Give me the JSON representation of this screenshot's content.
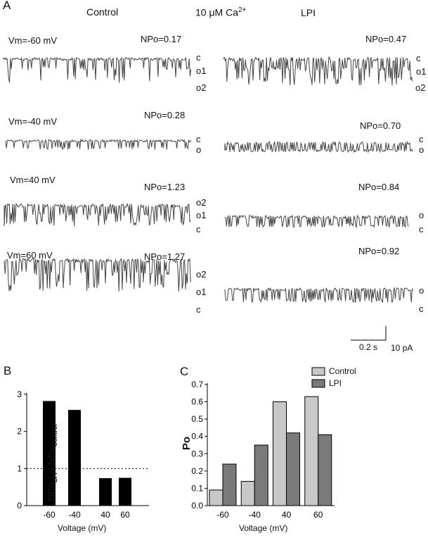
{
  "panelA": {
    "letter": "A",
    "control_title": "Control",
    "condition_prefix": "10 μM Ca",
    "condition_sup": "2+",
    "lpi_title": "LPI",
    "rows": [
      {
        "vm": "Vm=-60 mV",
        "control_npo": "NPo=0.17",
        "lpi_npo": "NPo=0.47",
        "control_states": [
          "c",
          "o1",
          "o2"
        ],
        "lpi_states": [
          "c",
          "o1",
          "o2"
        ]
      },
      {
        "vm": "Vm=-40 mV",
        "control_npo": "NPo=0.28",
        "lpi_npo": "NPo=0.70",
        "control_states": [
          "c",
          "o"
        ],
        "lpi_states": [
          "c",
          "o"
        ]
      },
      {
        "vm": "Vm=40 mV",
        "control_npo": "NPo=1.23",
        "lpi_npo": "NPo=0.84",
        "control_states": [
          "o2",
          "o1",
          "c"
        ],
        "lpi_states": [
          "o",
          "c"
        ]
      },
      {
        "vm": "Vm=60 mV",
        "control_npo": "NPo=1.27",
        "lpi_npo": "NPo=0.92",
        "control_states": [
          "o2",
          "o1",
          "c"
        ],
        "lpi_states": [
          "o",
          "c"
        ]
      }
    ],
    "scale_time": "0.2 s",
    "scale_current": "10 pA"
  },
  "chart_data": [
    {
      "panel": "B",
      "type": "bar",
      "categories": [
        "-60",
        "-40",
        "40",
        "60"
      ],
      "values": [
        2.82,
        2.58,
        0.74,
        0.75
      ],
      "xlabel": "Voltage (mV)",
      "ylabel_parts": [
        "NPo",
        "LPI",
        "/ NPo",
        "Control"
      ],
      "ylim": [
        0,
        3
      ],
      "yticks": [
        "0",
        "1",
        "2",
        "3"
      ],
      "reference_line": 1,
      "bar_color": "#000000"
    },
    {
      "panel": "C",
      "type": "bar",
      "categories": [
        "-60",
        "-40",
        "40",
        "60"
      ],
      "series": [
        {
          "name": "Control",
          "values": [
            0.09,
            0.14,
            0.6,
            0.63
          ],
          "color": "#c8c8c8"
        },
        {
          "name": "LPI",
          "values": [
            0.24,
            0.35,
            0.42,
            0.41
          ],
          "color": "#7a7a7a"
        }
      ],
      "xlabel": "Voltage (mV)",
      "ylabel": "Po",
      "ylim": [
        0,
        0.7
      ],
      "yticks": [
        "0.0",
        "0.1",
        "0.2",
        "0.3",
        "0.4",
        "0.5",
        "0.6",
        "0.7"
      ],
      "legend": "top-left"
    }
  ]
}
